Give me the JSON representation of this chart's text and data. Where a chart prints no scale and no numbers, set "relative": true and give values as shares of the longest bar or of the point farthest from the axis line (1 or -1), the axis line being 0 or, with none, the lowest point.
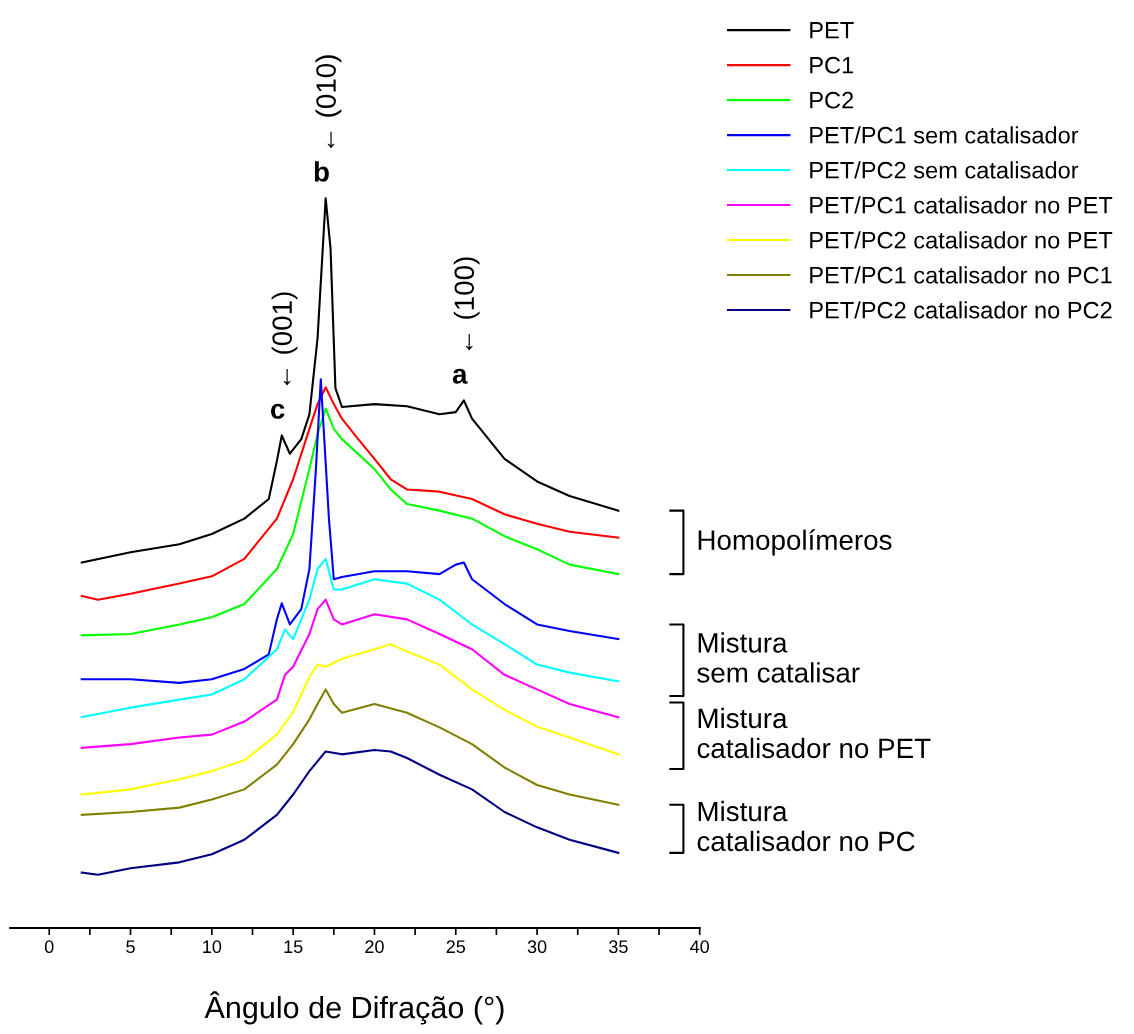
{
  "chart_data": {
    "type": "line",
    "relative": true,
    "xlabel": "Ângulo de Difração (°)",
    "xlim": [
      -2.4,
      40
    ],
    "xticks": [
      0,
      {
        "value": 2.5,
        "label": null
      },
      5,
      {
        "value": 7.5,
        "label": null
      },
      10,
      {
        "value": 12.5,
        "label": null
      },
      15,
      {
        "value": 17.5,
        "label": null
      },
      20,
      {
        "value": 22.5,
        "label": null
      },
      25,
      {
        "value": 27.5,
        "label": null
      },
      30,
      {
        "value": 32.5,
        "label": null
      },
      35,
      {
        "value": 37.5,
        "label": null
      },
      40
    ],
    "legend": "top right",
    "grid": false,
    "marker": "none",
    "line_style": "solid",
    "series": [
      {
        "name": "PET",
        "color": "#000000",
        "x": [
          2,
          5,
          8,
          10,
          12,
          13.5,
          14,
          14.3,
          14.8,
          15.5,
          16,
          16.5,
          17,
          17.3,
          17.6,
          18,
          20,
          22,
          24,
          25,
          25.5,
          26,
          28,
          30,
          32,
          35
        ],
        "values": [
          0.501,
          0.515,
          0.526,
          0.54,
          0.561,
          0.588,
          0.64,
          0.675,
          0.65,
          0.67,
          0.704,
          0.808,
          1.0,
          0.931,
          0.74,
          0.714,
          0.718,
          0.715,
          0.704,
          0.707,
          0.723,
          0.698,
          0.643,
          0.612,
          0.592,
          0.572
        ]
      },
      {
        "name": "PC1",
        "color": "#ff0000",
        "x": [
          2,
          3,
          5,
          8,
          10,
          12,
          14,
          15,
          16,
          16.5,
          17,
          17.5,
          18,
          19,
          20,
          21,
          22,
          24,
          26,
          28,
          30,
          32,
          35
        ],
        "values": [
          0.455,
          0.45,
          0.458,
          0.472,
          0.482,
          0.506,
          0.561,
          0.615,
          0.684,
          0.718,
          0.741,
          0.718,
          0.698,
          0.67,
          0.643,
          0.615,
          0.601,
          0.598,
          0.588,
          0.567,
          0.554,
          0.543,
          0.535
        ]
      },
      {
        "name": "PC2",
        "color": "#00ff00",
        "x": [
          2,
          5,
          8,
          10,
          12,
          14,
          15,
          16,
          16.5,
          17,
          17.5,
          18,
          20,
          21,
          22,
          24,
          26,
          28,
          30,
          32,
          35
        ],
        "values": [
          0.401,
          0.403,
          0.416,
          0.426,
          0.444,
          0.492,
          0.54,
          0.629,
          0.677,
          0.712,
          0.684,
          0.67,
          0.629,
          0.601,
          0.581,
          0.572,
          0.561,
          0.537,
          0.519,
          0.498,
          0.485
        ]
      },
      {
        "name": "PET/PC1 sem catalisador",
        "color": "#0000ff",
        "x": [
          2,
          5,
          8,
          10,
          12,
          13.5,
          14,
          14.3,
          14.8,
          15.5,
          16,
          16.4,
          16.7,
          17.2,
          17.5,
          18,
          20,
          22,
          24,
          25,
          25.5,
          26,
          28,
          30,
          32,
          35
        ],
        "values": [
          0.341,
          0.341,
          0.336,
          0.341,
          0.355,
          0.375,
          0.423,
          0.445,
          0.416,
          0.437,
          0.492,
          0.629,
          0.752,
          0.561,
          0.478,
          0.481,
          0.489,
          0.489,
          0.485,
          0.498,
          0.501,
          0.478,
          0.444,
          0.416,
          0.407,
          0.396
        ]
      },
      {
        "name": "PET/PC2 sem catalisador",
        "color": "#00ffff",
        "x": [
          2,
          5,
          8,
          10,
          12,
          14,
          14.5,
          15,
          16,
          16.5,
          17,
          17.5,
          18,
          20,
          22,
          24,
          26,
          28,
          30,
          32,
          35
        ],
        "values": [
          0.289,
          0.302,
          0.313,
          0.32,
          0.341,
          0.382,
          0.409,
          0.396,
          0.45,
          0.492,
          0.506,
          0.464,
          0.464,
          0.478,
          0.472,
          0.45,
          0.416,
          0.389,
          0.361,
          0.35,
          0.338
        ]
      },
      {
        "name": "PET/PC1 catalisador no PET",
        "color": "#ff00ff",
        "x": [
          2,
          5,
          8,
          10,
          12,
          14,
          14.5,
          15,
          16,
          16.5,
          17,
          17.5,
          18,
          20,
          22,
          24,
          26,
          28,
          30,
          32,
          35
        ],
        "values": [
          0.247,
          0.252,
          0.261,
          0.265,
          0.283,
          0.313,
          0.347,
          0.358,
          0.403,
          0.437,
          0.45,
          0.423,
          0.416,
          0.43,
          0.423,
          0.403,
          0.382,
          0.347,
          0.327,
          0.307,
          0.289
        ]
      },
      {
        "name": "PET/PC2 catalisador no PET",
        "color": "#ffff00",
        "x": [
          2,
          5,
          8,
          10,
          12,
          14,
          15,
          16,
          16.5,
          17,
          18,
          20,
          21,
          22,
          24,
          26,
          28,
          30,
          32,
          35
        ],
        "values": [
          0.183,
          0.19,
          0.204,
          0.215,
          0.23,
          0.265,
          0.296,
          0.344,
          0.361,
          0.358,
          0.369,
          0.382,
          0.389,
          0.379,
          0.361,
          0.327,
          0.299,
          0.276,
          0.261,
          0.238
        ]
      },
      {
        "name": "PET/PC1 catalisador no PC1",
        "color": "#808000",
        "x": [
          2,
          5,
          8,
          10,
          12,
          14,
          14.5,
          15,
          16,
          16.5,
          17,
          17.5,
          18,
          20,
          22,
          24,
          26,
          28,
          30,
          32,
          35
        ],
        "values": [
          0.155,
          0.159,
          0.165,
          0.176,
          0.19,
          0.224,
          0.238,
          0.252,
          0.286,
          0.307,
          0.327,
          0.307,
          0.295,
          0.307,
          0.295,
          0.275,
          0.252,
          0.22,
          0.196,
          0.183,
          0.169
        ]
      },
      {
        "name": "PET/PC2 catalisador no PC2",
        "color": "#000080",
        "x": [
          2,
          3,
          5,
          8,
          10,
          12,
          14,
          15,
          16,
          17,
          18,
          20,
          21,
          22,
          24,
          26,
          28,
          30,
          32,
          35
        ],
        "values": [
          0.076,
          0.073,
          0.082,
          0.09,
          0.101,
          0.121,
          0.155,
          0.183,
          0.215,
          0.242,
          0.238,
          0.244,
          0.242,
          0.233,
          0.21,
          0.19,
          0.159,
          0.138,
          0.121,
          0.103
        ]
      }
    ],
    "annotations": [
      {
        "text": "c",
        "x": 14.3,
        "y": 0.675
      },
      {
        "text": "← (001)",
        "x": 14.3,
        "y": 0.675
      },
      {
        "text": "b",
        "x": 17,
        "y": 1.0
      },
      {
        "text": "← (010)",
        "x": 17,
        "y": 1.0
      },
      {
        "text": "a",
        "x": 25.5,
        "y": 0.723
      },
      {
        "text": "← (100)",
        "x": 25.5,
        "y": 0.723
      },
      "Homopolímeros",
      "Mistura\nsem catalisar",
      "Mistura\ncatalisador no PET",
      "Mistura\ncatalisador no PC"
    ]
  }
}
